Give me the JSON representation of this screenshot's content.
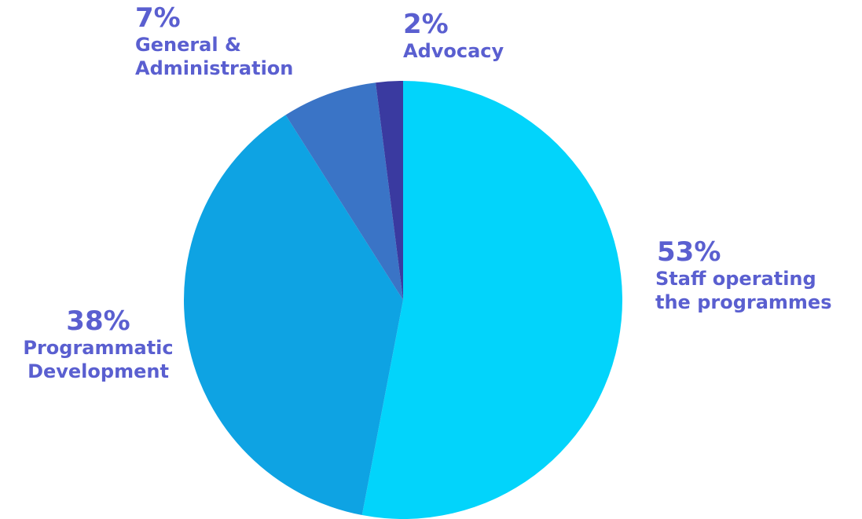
{
  "chart_data": {
    "type": "pie",
    "slices": [
      {
        "label_lines": [
          "Staff operating",
          "the programmes"
        ],
        "percent_label": "53%",
        "value": 53,
        "color": "#02d4fb"
      },
      {
        "label_lines": [
          "Programmatic",
          "Development"
        ],
        "percent_label": "38%",
        "value": 38,
        "color": "#0ea3e3"
      },
      {
        "label_lines": [
          "General &",
          "Administration"
        ],
        "percent_label": "7%",
        "value": 7,
        "color": "#3a74c6"
      },
      {
        "label_lines": [
          "Advocacy"
        ],
        "percent_label": "2%",
        "value": 2,
        "color": "#3a3aa0"
      }
    ],
    "start": "12 o'clock",
    "direction": "clockwise",
    "legend": "none",
    "label_color": "#5a5fd0"
  }
}
